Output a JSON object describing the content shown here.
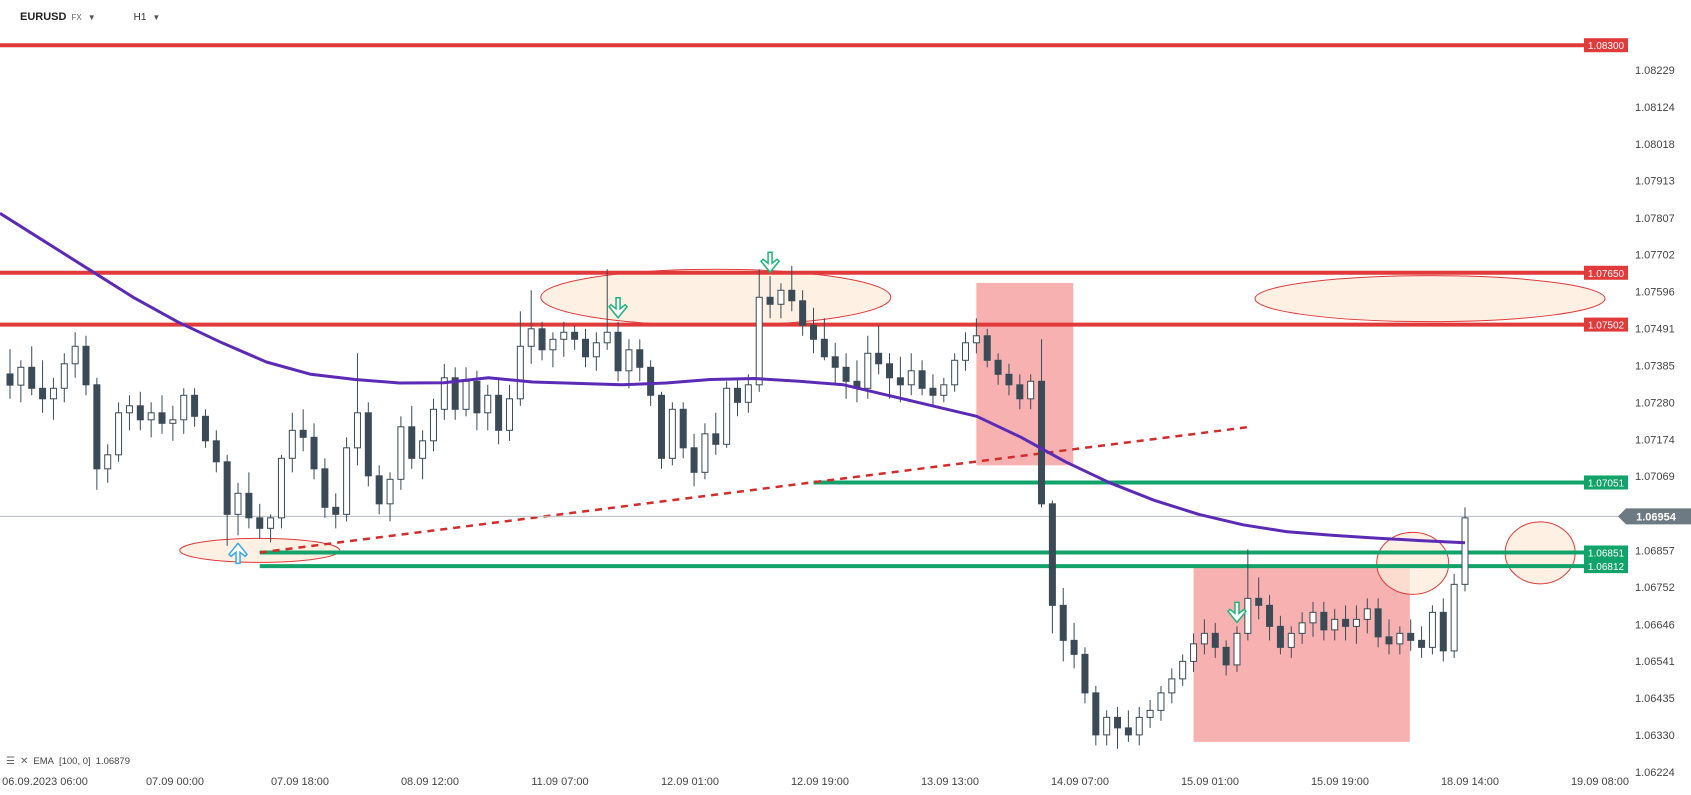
{
  "header": {
    "symbol": "EURUSD",
    "market": "FX",
    "timeframe": "H1"
  },
  "indicator": {
    "label": "EMA",
    "params": "[100, 0]",
    "value": "1.06879",
    "color": "#5b2bb5"
  },
  "colors": {
    "bull": "#ffffff",
    "bear": "#3a4a57",
    "resistance": "#e03a3a",
    "support": "#12a36a",
    "zone_fill": "#fdebd9",
    "box_fill": "#f59e9e",
    "current_price_bg": "#6d7a83",
    "arrow_down": "#1fb47a",
    "arrow_up": "#35a9e8"
  },
  "chart_data": {
    "type": "candlestick",
    "symbol": "EURUSD",
    "timeframe": "H1",
    "ylim": [
      1.06224,
      1.08372
    ],
    "y_ticks": [
      "1.08229",
      "1.08124",
      "1.08018",
      "1.07913",
      "1.07807",
      "1.07702",
      "1.07596",
      "1.07491",
      "1.07385",
      "1.07280",
      "1.07174",
      "1.07069",
      "1.06857",
      "1.06752",
      "1.06646",
      "1.06541",
      "1.06435",
      "1.06330",
      "1.06224"
    ],
    "x_ticks": [
      "06.09.2023  06:00",
      "07.09  00:00",
      "07.09  18:00",
      "08.09  12:00",
      "11.09  07:00",
      "12.09  01:00",
      "12.09  19:00",
      "13.09  13:00",
      "14.09  07:00",
      "15.09  01:00",
      "15.09  19:00",
      "18.09  14:00",
      "19.09  08:00"
    ],
    "price_levels": [
      {
        "label": "1.08300",
        "value": 1.083,
        "role": "resistance"
      },
      {
        "label": "1.07650",
        "value": 1.0765,
        "role": "resistance"
      },
      {
        "label": "1.07502",
        "value": 1.07502,
        "role": "resistance"
      },
      {
        "label": "1.07051",
        "value": 1.07051,
        "role": "support"
      },
      {
        "label": "1.06851",
        "value": 1.06851,
        "role": "support"
      },
      {
        "label": "1.06812",
        "value": 1.06812,
        "role": "support"
      }
    ],
    "current_price": "1.06954",
    "ema_period": 100,
    "ema_value": 1.06879,
    "candles": [
      [
        1.07361,
        1.07432,
        1.0729,
        1.07329
      ],
      [
        1.07329,
        1.074,
        1.0728,
        1.0738
      ],
      [
        1.0738,
        1.0744,
        1.073,
        1.0732
      ],
      [
        1.0732,
        1.074,
        1.0725,
        1.0729
      ],
      [
        1.0729,
        1.0735,
        1.0723,
        1.0732
      ],
      [
        1.0732,
        1.0742,
        1.0728,
        1.0739
      ],
      [
        1.0739,
        1.0748,
        1.0735,
        1.0744
      ],
      [
        1.0744,
        1.0747,
        1.073,
        1.0733
      ],
      [
        1.0733,
        1.0735,
        1.0703,
        1.0709
      ],
      [
        1.0709,
        1.0716,
        1.0705,
        1.0713
      ],
      [
        1.0713,
        1.0728,
        1.0711,
        1.0725
      ],
      [
        1.0725,
        1.073,
        1.072,
        1.0727
      ],
      [
        1.0727,
        1.0731,
        1.072,
        1.0723
      ],
      [
        1.0723,
        1.0728,
        1.0718,
        1.0725
      ],
      [
        1.0725,
        1.073,
        1.0719,
        1.0722
      ],
      [
        1.0722,
        1.0727,
        1.0717,
        1.0723
      ],
      [
        1.0723,
        1.0732,
        1.0719,
        1.073
      ],
      [
        1.073,
        1.0732,
        1.0721,
        1.0724
      ],
      [
        1.0724,
        1.0726,
        1.0715,
        1.0717
      ],
      [
        1.0717,
        1.072,
        1.0708,
        1.0711
      ],
      [
        1.0711,
        1.0713,
        1.0687,
        1.0696
      ],
      [
        1.0696,
        1.0705,
        1.069,
        1.0702
      ],
      [
        1.0702,
        1.0708,
        1.0692,
        1.0695
      ],
      [
        1.0695,
        1.0699,
        1.0689,
        1.0692
      ],
      [
        1.0692,
        1.0696,
        1.0688,
        1.0695
      ],
      [
        1.0695,
        1.0713,
        1.0692,
        1.0712
      ],
      [
        1.0712,
        1.0725,
        1.0708,
        1.072
      ],
      [
        1.072,
        1.0726,
        1.0714,
        1.0718
      ],
      [
        1.0718,
        1.0722,
        1.0706,
        1.0709
      ],
      [
        1.0709,
        1.0712,
        1.0695,
        1.0698
      ],
      [
        1.0698,
        1.0702,
        1.0692,
        1.0696
      ],
      [
        1.0696,
        1.0718,
        1.0694,
        1.0715
      ],
      [
        1.0715,
        1.0742,
        1.071,
        1.0725
      ],
      [
        1.0725,
        1.0728,
        1.0704,
        1.0707
      ],
      [
        1.0707,
        1.071,
        1.0696,
        1.0699
      ],
      [
        1.0699,
        1.0708,
        1.0694,
        1.0706
      ],
      [
        1.0706,
        1.0724,
        1.0703,
        1.0721
      ],
      [
        1.0721,
        1.0727,
        1.0709,
        1.0712
      ],
      [
        1.0712,
        1.072,
        1.0706,
        1.0717
      ],
      [
        1.0717,
        1.0729,
        1.0714,
        1.0726
      ],
      [
        1.0726,
        1.0739,
        1.0723,
        1.0735
      ],
      [
        1.0735,
        1.0738,
        1.0723,
        1.0726
      ],
      [
        1.0726,
        1.0738,
        1.0724,
        1.0734
      ],
      [
        1.0734,
        1.0737,
        1.072,
        1.0725
      ],
      [
        1.0725,
        1.0733,
        1.072,
        1.073
      ],
      [
        1.073,
        1.0735,
        1.0716,
        1.072
      ],
      [
        1.072,
        1.0733,
        1.0717,
        1.0729
      ],
      [
        1.0729,
        1.0754,
        1.0727,
        1.0744
      ],
      [
        1.0744,
        1.076,
        1.0739,
        1.0749
      ],
      [
        1.0749,
        1.0751,
        1.074,
        1.0743
      ],
      [
        1.0743,
        1.0748,
        1.0738,
        1.0746
      ],
      [
        1.0746,
        1.0751,
        1.0741,
        1.0748
      ],
      [
        1.0748,
        1.075,
        1.0743,
        1.0746
      ],
      [
        1.0746,
        1.0749,
        1.0738,
        1.0741
      ],
      [
        1.0741,
        1.0748,
        1.0737,
        1.0745
      ],
      [
        1.0745,
        1.0766,
        1.0743,
        1.0748
      ],
      [
        1.0748,
        1.0751,
        1.0734,
        1.0737
      ],
      [
        1.0737,
        1.0746,
        1.0732,
        1.0743
      ],
      [
        1.0743,
        1.0746,
        1.0734,
        1.0738
      ],
      [
        1.0738,
        1.074,
        1.0727,
        1.073
      ],
      [
        1.073,
        1.0731,
        1.0709,
        1.0712
      ],
      [
        1.0712,
        1.0728,
        1.071,
        1.0726
      ],
      [
        1.0726,
        1.0728,
        1.0712,
        1.0715
      ],
      [
        1.0715,
        1.0719,
        1.0704,
        1.0708
      ],
      [
        1.0708,
        1.0722,
        1.0706,
        1.0719
      ],
      [
        1.0719,
        1.0725,
        1.0713,
        1.0716
      ],
      [
        1.0716,
        1.0734,
        1.0715,
        1.0732
      ],
      [
        1.0732,
        1.0735,
        1.0724,
        1.0728
      ],
      [
        1.0728,
        1.0736,
        1.0725,
        1.0733
      ],
      [
        1.0733,
        1.0766,
        1.0731,
        1.0758
      ],
      [
        1.0758,
        1.0764,
        1.0752,
        1.0756
      ],
      [
        1.0756,
        1.0762,
        1.0752,
        1.076
      ],
      [
        1.076,
        1.0767,
        1.0754,
        1.0757
      ],
      [
        1.0757,
        1.076,
        1.0747,
        1.075
      ],
      [
        1.075,
        1.0755,
        1.0742,
        1.0746
      ],
      [
        1.0746,
        1.0752,
        1.074,
        1.0741
      ],
      [
        1.0741,
        1.0745,
        1.0733,
        1.0738
      ],
      [
        1.0738,
        1.0742,
        1.0729,
        1.0734
      ],
      [
        1.0734,
        1.074,
        1.0728,
        1.0732
      ],
      [
        1.0732,
        1.0747,
        1.0729,
        1.0742
      ],
      [
        1.0742,
        1.075,
        1.0736,
        1.0739
      ],
      [
        1.0739,
        1.0742,
        1.0729,
        1.0735
      ],
      [
        1.0735,
        1.0741,
        1.0728,
        1.0733
      ],
      [
        1.0733,
        1.0742,
        1.073,
        1.0737
      ],
      [
        1.0737,
        1.074,
        1.073,
        1.0732
      ],
      [
        1.0732,
        1.0736,
        1.0727,
        1.073
      ],
      [
        1.073,
        1.0735,
        1.0728,
        1.0733
      ],
      [
        1.0733,
        1.0742,
        1.0731,
        1.074
      ],
      [
        1.074,
        1.0748,
        1.0737,
        1.0745
      ],
      [
        1.0745,
        1.0752,
        1.0742,
        1.0747
      ],
      [
        1.0747,
        1.0749,
        1.0738,
        1.074
      ],
      [
        1.074,
        1.0742,
        1.0733,
        1.0736
      ],
      [
        1.0736,
        1.0739,
        1.073,
        1.0733
      ],
      [
        1.0733,
        1.0736,
        1.0726,
        1.0729
      ],
      [
        1.0729,
        1.0736,
        1.0726,
        1.0734
      ],
      [
        1.0734,
        1.0746,
        1.0698,
        1.0699
      ],
      [
        1.0699,
        1.07,
        1.0662,
        1.067
      ],
      [
        1.067,
        1.0675,
        1.0654,
        1.066
      ],
      [
        1.066,
        1.0665,
        1.0652,
        1.0656
      ],
      [
        1.0656,
        1.0658,
        1.0642,
        1.0645
      ],
      [
        1.0645,
        1.0647,
        1.063,
        1.0633
      ],
      [
        1.0633,
        1.064,
        1.063,
        1.0638
      ],
      [
        1.0638,
        1.0641,
        1.0629,
        1.0635
      ],
      [
        1.0635,
        1.064,
        1.0631,
        1.0633
      ],
      [
        1.0633,
        1.0641,
        1.063,
        1.0638
      ],
      [
        1.0638,
        1.0643,
        1.0635,
        1.064
      ],
      [
        1.064,
        1.0647,
        1.0637,
        1.0645
      ],
      [
        1.0645,
        1.0652,
        1.0642,
        1.0649
      ],
      [
        1.0649,
        1.0656,
        1.0647,
        1.0654
      ],
      [
        1.0654,
        1.0662,
        1.0651,
        1.0659
      ],
      [
        1.0659,
        1.0666,
        1.0656,
        1.0662
      ],
      [
        1.0662,
        1.0665,
        1.0655,
        1.0658
      ],
      [
        1.0658,
        1.066,
        1.065,
        1.0653
      ],
      [
        1.0653,
        1.0664,
        1.0651,
        1.0662
      ],
      [
        1.0662,
        1.0686,
        1.066,
        1.0672
      ],
      [
        1.0672,
        1.0678,
        1.0666,
        1.067
      ],
      [
        1.067,
        1.0673,
        1.066,
        1.0664
      ],
      [
        1.0664,
        1.0667,
        1.0656,
        1.0658
      ],
      [
        1.0658,
        1.0664,
        1.0655,
        1.0662
      ],
      [
        1.0662,
        1.0668,
        1.0659,
        1.0665
      ],
      [
        1.0665,
        1.0671,
        1.0661,
        1.0668
      ],
      [
        1.0668,
        1.0671,
        1.066,
        1.0663
      ],
      [
        1.0663,
        1.0669,
        1.066,
        1.0666
      ],
      [
        1.0666,
        1.067,
        1.066,
        1.0664
      ],
      [
        1.0664,
        1.067,
        1.0659,
        1.0666
      ],
      [
        1.0666,
        1.0672,
        1.0662,
        1.0669
      ],
      [
        1.0669,
        1.0672,
        1.0658,
        1.0661
      ],
      [
        1.0661,
        1.0666,
        1.0656,
        1.0659
      ],
      [
        1.0659,
        1.0664,
        1.0656,
        1.0662
      ],
      [
        1.0662,
        1.0666,
        1.0657,
        1.066
      ],
      [
        1.066,
        1.0664,
        1.0655,
        1.0658
      ],
      [
        1.0658,
        1.067,
        1.0656,
        1.0668
      ],
      [
        1.0668,
        1.0672,
        1.0654,
        1.0657
      ],
      [
        1.0657,
        1.0679,
        1.0655,
        1.0676
      ],
      [
        1.0676,
        1.0698,
        1.0674,
        1.0695
      ]
    ],
    "ema": [
      1.0782,
      1.0774,
      1.0766,
      1.0758,
      1.0751,
      1.0745,
      1.07395,
      1.0736,
      1.07345,
      1.07335,
      1.07336,
      1.0735,
      1.07338,
      1.07334,
      1.0733,
      1.07335,
      1.07345,
      1.07348,
      1.0734,
      1.0733,
      1.073,
      1.0727,
      1.0724,
      1.0718,
      1.0711,
      1.0705,
      1.07,
      1.0696,
      1.0693,
      1.0691,
      1.069,
      1.06892,
      1.06885,
      1.06879
    ],
    "zones": [
      {
        "kind": "ellipse",
        "label": "resistance-zone-left"
      },
      {
        "kind": "ellipse",
        "label": "resistance-zone-right"
      },
      {
        "kind": "ellipse",
        "label": "support-zone-left"
      },
      {
        "kind": "ellipse",
        "label": "reaction-zone-1"
      },
      {
        "kind": "ellipse",
        "label": "reaction-zone-2"
      },
      {
        "kind": "rect",
        "label": "consolidation-box-1"
      },
      {
        "kind": "rect",
        "label": "consolidation-box-2"
      }
    ],
    "trendline": {
      "style": "dashed",
      "color": "#d42b2b",
      "from": 1.06851,
      "to": 1.07209
    },
    "signals": [
      {
        "type": "arrow-down",
        "candle": 56
      },
      {
        "type": "arrow-down",
        "candle": 70
      },
      {
        "type": "arrow-down",
        "candle": 113
      },
      {
        "type": "arrow-up",
        "candle": 21
      }
    ]
  }
}
